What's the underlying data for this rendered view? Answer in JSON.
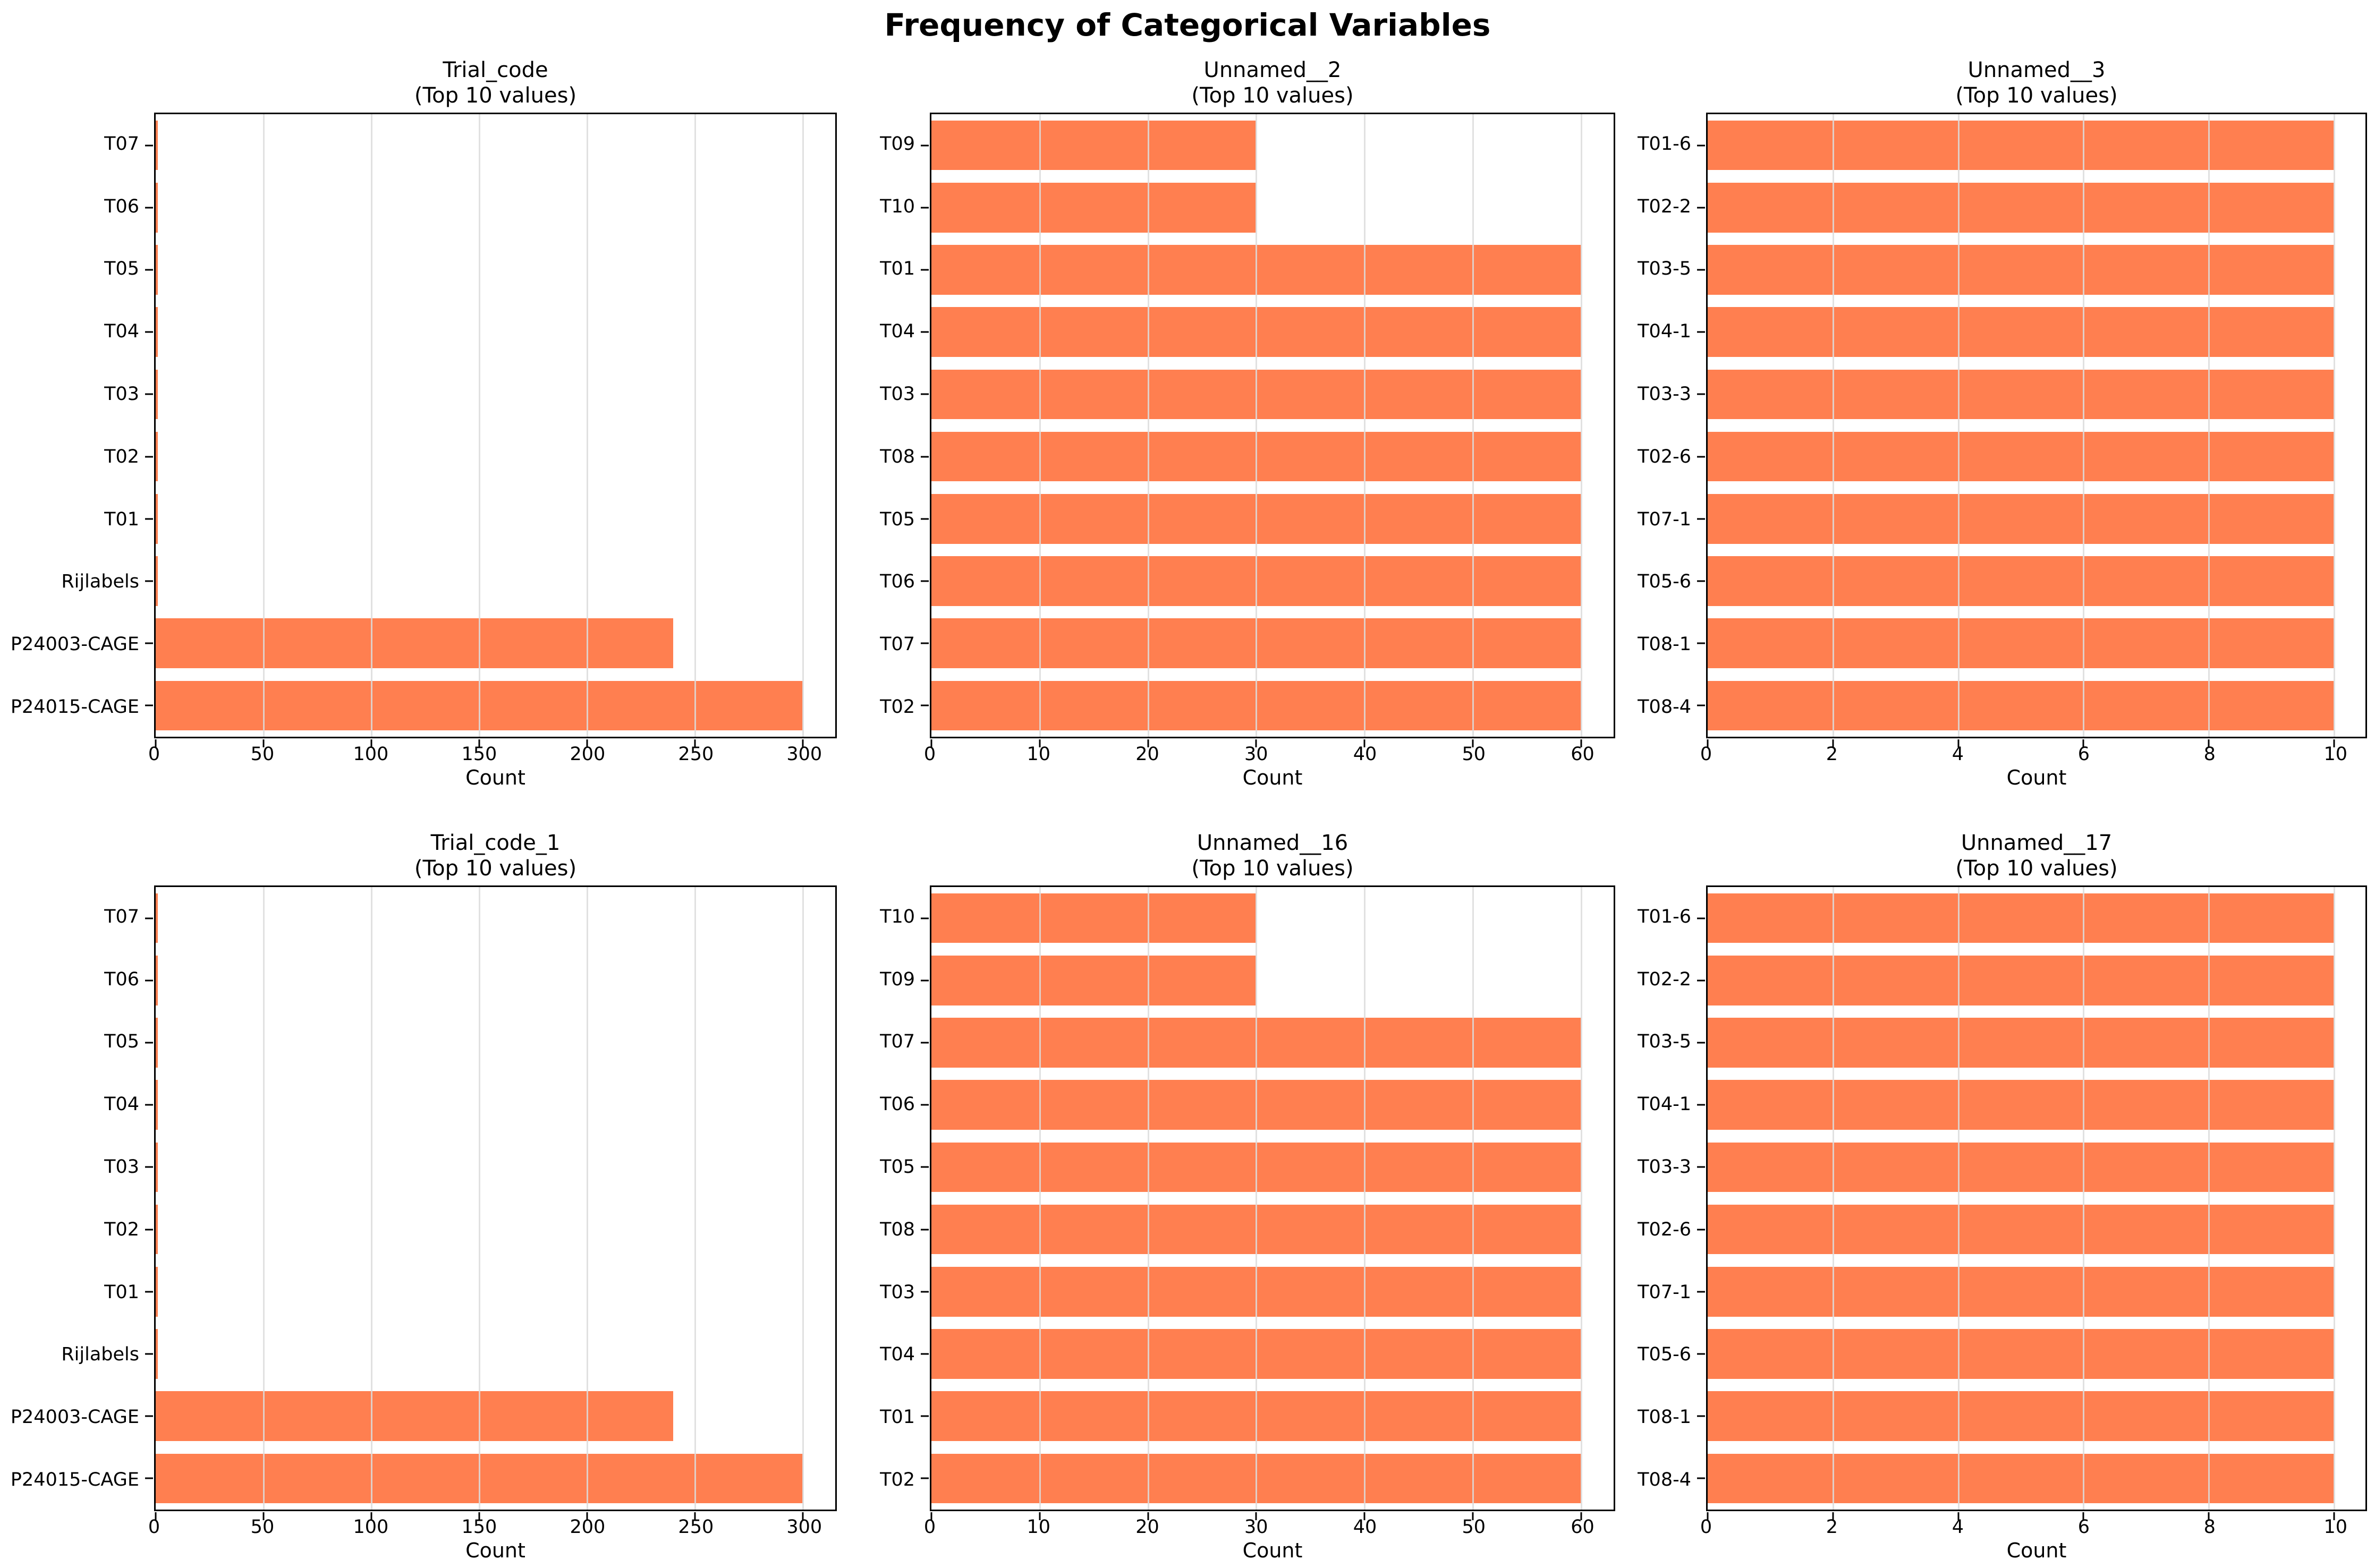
{
  "title": "Frequency of Categorical Variables",
  "style": {
    "bar_color": "#FF7F50",
    "grid_color": "#DCDCDC",
    "spine_color": "#000000",
    "background": "#FFFFFF"
  },
  "chart_data": [
    {
      "type": "bar",
      "orientation": "horizontal",
      "title": "Trial_code",
      "subtitle": "(Top 10 values)",
      "xlabel": "Count",
      "categories": [
        "T07",
        "T06",
        "T05",
        "T04",
        "T03",
        "T02",
        "T01",
        "Rijlabels",
        "P24003-CAGE",
        "P24015-CAGE"
      ],
      "values": [
        1,
        1,
        1,
        1,
        1,
        1,
        1,
        1,
        240,
        300
      ],
      "xticks": [
        0,
        50,
        100,
        150,
        200,
        250,
        300
      ],
      "xlim": [
        0,
        315
      ],
      "grid": true,
      "legend": false
    },
    {
      "type": "bar",
      "orientation": "horizontal",
      "title": "Unnamed__2",
      "subtitle": "(Top 10 values)",
      "xlabel": "Count",
      "categories": [
        "T09",
        "T10",
        "T01",
        "T04",
        "T03",
        "T08",
        "T05",
        "T06",
        "T07",
        "T02"
      ],
      "values": [
        30,
        30,
        60,
        60,
        60,
        60,
        60,
        60,
        60,
        60
      ],
      "xticks": [
        0,
        10,
        20,
        30,
        40,
        50,
        60
      ],
      "xlim": [
        0,
        63
      ],
      "grid": true,
      "legend": false
    },
    {
      "type": "bar",
      "orientation": "horizontal",
      "title": "Unnamed__3",
      "subtitle": "(Top 10 values)",
      "xlabel": "Count",
      "categories": [
        "T01-6",
        "T02-2",
        "T03-5",
        "T04-1",
        "T03-3",
        "T02-6",
        "T07-1",
        "T05-6",
        "T08-1",
        "T08-4"
      ],
      "values": [
        10,
        10,
        10,
        10,
        10,
        10,
        10,
        10,
        10,
        10
      ],
      "xticks": [
        0,
        2,
        4,
        6,
        8,
        10
      ],
      "xlim": [
        0,
        10.5
      ],
      "grid": true,
      "legend": false
    },
    {
      "type": "bar",
      "orientation": "horizontal",
      "title": "Trial_code_1",
      "subtitle": "(Top 10 values)",
      "xlabel": "Count",
      "categories": [
        "T07",
        "T06",
        "T05",
        "T04",
        "T03",
        "T02",
        "T01",
        "Rijlabels",
        "P24003-CAGE",
        "P24015-CAGE"
      ],
      "values": [
        1,
        1,
        1,
        1,
        1,
        1,
        1,
        1,
        240,
        300
      ],
      "xticks": [
        0,
        50,
        100,
        150,
        200,
        250,
        300
      ],
      "xlim": [
        0,
        315
      ],
      "grid": true,
      "legend": false
    },
    {
      "type": "bar",
      "orientation": "horizontal",
      "title": "Unnamed__16",
      "subtitle": "(Top 10 values)",
      "xlabel": "Count",
      "categories": [
        "T10",
        "T09",
        "T07",
        "T06",
        "T05",
        "T08",
        "T03",
        "T04",
        "T01",
        "T02"
      ],
      "values": [
        30,
        30,
        60,
        60,
        60,
        60,
        60,
        60,
        60,
        60
      ],
      "xticks": [
        0,
        10,
        20,
        30,
        40,
        50,
        60
      ],
      "xlim": [
        0,
        63
      ],
      "grid": true,
      "legend": false
    },
    {
      "type": "bar",
      "orientation": "horizontal",
      "title": "Unnamed__17",
      "subtitle": "(Top 10 values)",
      "xlabel": "Count",
      "categories": [
        "T01-6",
        "T02-2",
        "T03-5",
        "T04-1",
        "T03-3",
        "T02-6",
        "T07-1",
        "T05-6",
        "T08-1",
        "T08-4"
      ],
      "values": [
        10,
        10,
        10,
        10,
        10,
        10,
        10,
        10,
        10,
        10
      ],
      "xticks": [
        0,
        2,
        4,
        6,
        8,
        10
      ],
      "xlim": [
        0,
        10.5
      ],
      "grid": true,
      "legend": false
    }
  ]
}
